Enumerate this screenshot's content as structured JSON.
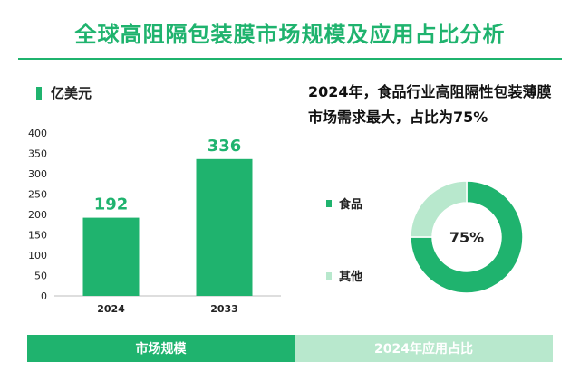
{
  "title": "全球高阻隔包装膜市场规模及应用占比分析",
  "colors": {
    "primary": "#1fb36e",
    "light": "#b8e8cd"
  },
  "headline": "2024年，食品行业高阻隔性包装薄膜市场需求最大，占比为75%",
  "footer": {
    "left": "市场规模",
    "right": "2024年应用占比"
  },
  "chart_data": [
    {
      "type": "bar",
      "unit": "亿美元",
      "categories": [
        "2024",
        "2033"
      ],
      "values": [
        192,
        336
      ],
      "ylim": [
        0,
        400
      ],
      "yticks": [
        0,
        50,
        100,
        150,
        200,
        250,
        300,
        350,
        400
      ],
      "grid": false
    },
    {
      "type": "pie",
      "donut": true,
      "center_label": "75%",
      "slices": [
        {
          "label": "食品",
          "value": 75,
          "color": "#1fb36e"
        },
        {
          "label": "其他",
          "value": 25,
          "color": "#b8e8cd"
        }
      ],
      "legend": "left"
    }
  ]
}
